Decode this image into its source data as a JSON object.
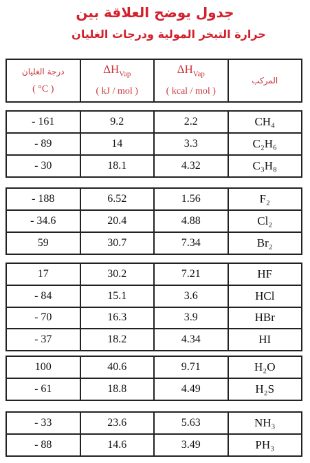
{
  "title": {
    "line1": "جدول يوضح العلاقة بين",
    "line2": "حرارة التبخر المولية ودرجات الغليان"
  },
  "header": [
    {
      "label": "درجة الغليان",
      "unit": "( °C )"
    },
    {
      "label": "ΔH",
      "subscript": "Vap",
      "unit": "( kJ / mol )"
    },
    {
      "label": "ΔH",
      "subscript": "Vap",
      "unit": "( kcal / mol )"
    },
    {
      "label": "المركب"
    }
  ],
  "groups": [
    {
      "rows": [
        [
          "- 161",
          "9.2",
          "2.2",
          "CH₄"
        ],
        [
          "- 89",
          "14",
          "3.3",
          "C₂H₆"
        ],
        [
          "- 30",
          "18.1",
          "4.32",
          "C₃H₈"
        ]
      ]
    },
    {
      "rows": [
        [
          "- 188",
          "6.52",
          "1.56",
          "F₂"
        ],
        [
          "- 34.6",
          "20.4",
          "4.88",
          "Cl₂"
        ],
        [
          "59",
          "30.7",
          "7.34",
          "Br₂"
        ]
      ]
    },
    {
      "rows": [
        [
          "17",
          "30.2",
          "7.21",
          "HF"
        ],
        [
          "- 84",
          "15.1",
          "3.6",
          "HCl"
        ],
        [
          "- 70",
          "16.3",
          "3.9",
          "HBr"
        ],
        [
          "- 37",
          "18.2",
          "4.34",
          "HI"
        ]
      ]
    },
    {
      "rows": [
        [
          "100",
          "40.6",
          "9.71",
          "H₂O"
        ],
        [
          "- 61",
          "18.8",
          "4.49",
          "H₂S"
        ]
      ]
    },
    {
      "rows": [
        [
          "- 33",
          "23.6",
          "5.63",
          "NH₃"
        ],
        [
          "- 88",
          "14.6",
          "3.49",
          "PH₃"
        ]
      ]
    }
  ]
}
